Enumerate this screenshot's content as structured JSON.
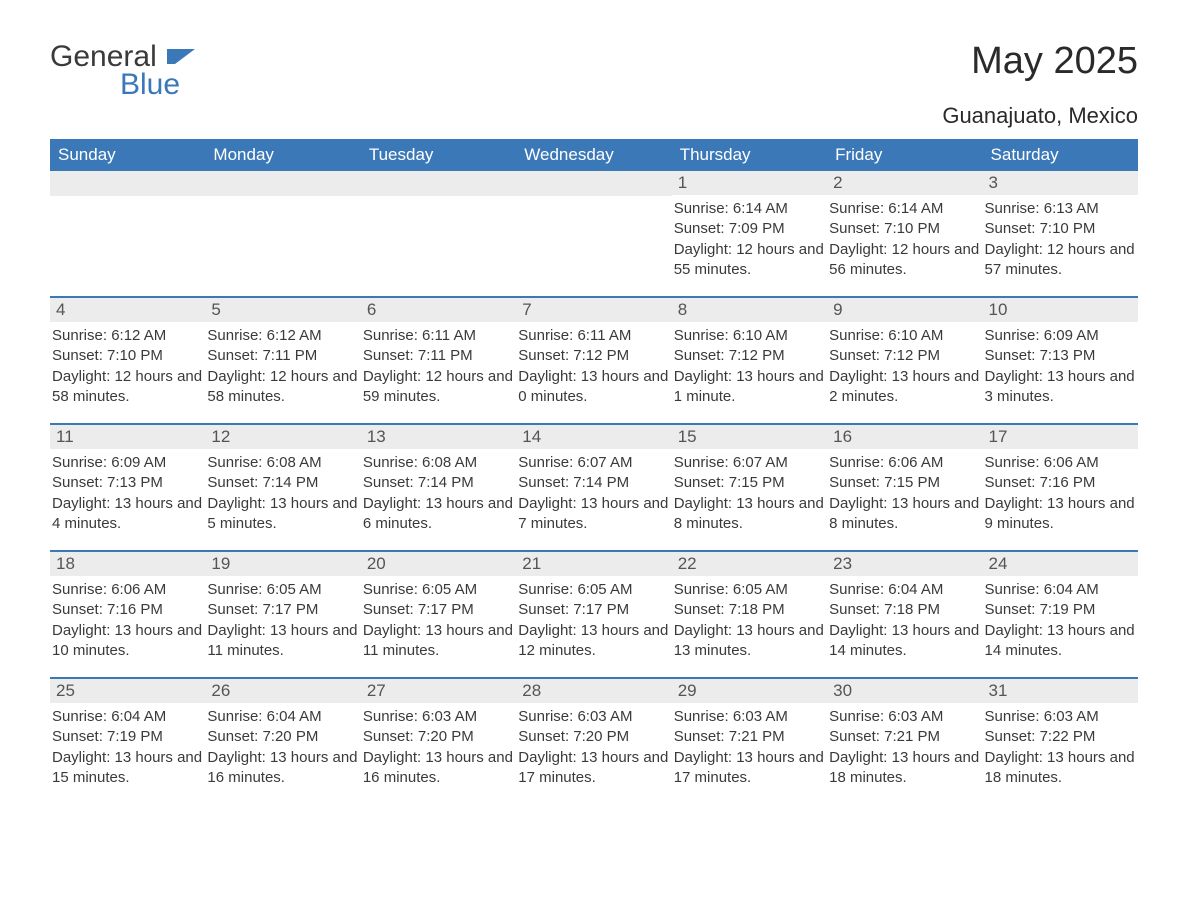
{
  "logo": {
    "text1": "General",
    "text2": "Blue"
  },
  "title": "May 2025",
  "location": "Guanajuato, Mexico",
  "colors": {
    "header_bg": "#3b78b8",
    "header_text": "#ffffff",
    "daynum_bg": "#ececec",
    "daynum_text": "#555555",
    "body_text": "#3a3a3a",
    "row_border": "#3b78b8",
    "logo_blue": "#3b78b8",
    "page_bg": "#ffffff"
  },
  "weekdays": [
    "Sunday",
    "Monday",
    "Tuesday",
    "Wednesday",
    "Thursday",
    "Friday",
    "Saturday"
  ],
  "weeks": [
    [
      {
        "day": "",
        "sunrise": "",
        "sunset": "",
        "daylight": ""
      },
      {
        "day": "",
        "sunrise": "",
        "sunset": "",
        "daylight": ""
      },
      {
        "day": "",
        "sunrise": "",
        "sunset": "",
        "daylight": ""
      },
      {
        "day": "",
        "sunrise": "",
        "sunset": "",
        "daylight": ""
      },
      {
        "day": "1",
        "sunrise": "Sunrise: 6:14 AM",
        "sunset": "Sunset: 7:09 PM",
        "daylight": "Daylight: 12 hours and 55 minutes."
      },
      {
        "day": "2",
        "sunrise": "Sunrise: 6:14 AM",
        "sunset": "Sunset: 7:10 PM",
        "daylight": "Daylight: 12 hours and 56 minutes."
      },
      {
        "day": "3",
        "sunrise": "Sunrise: 6:13 AM",
        "sunset": "Sunset: 7:10 PM",
        "daylight": "Daylight: 12 hours and 57 minutes."
      }
    ],
    [
      {
        "day": "4",
        "sunrise": "Sunrise: 6:12 AM",
        "sunset": "Sunset: 7:10 PM",
        "daylight": "Daylight: 12 hours and 58 minutes."
      },
      {
        "day": "5",
        "sunrise": "Sunrise: 6:12 AM",
        "sunset": "Sunset: 7:11 PM",
        "daylight": "Daylight: 12 hours and 58 minutes."
      },
      {
        "day": "6",
        "sunrise": "Sunrise: 6:11 AM",
        "sunset": "Sunset: 7:11 PM",
        "daylight": "Daylight: 12 hours and 59 minutes."
      },
      {
        "day": "7",
        "sunrise": "Sunrise: 6:11 AM",
        "sunset": "Sunset: 7:12 PM",
        "daylight": "Daylight: 13 hours and 0 minutes."
      },
      {
        "day": "8",
        "sunrise": "Sunrise: 6:10 AM",
        "sunset": "Sunset: 7:12 PM",
        "daylight": "Daylight: 13 hours and 1 minute."
      },
      {
        "day": "9",
        "sunrise": "Sunrise: 6:10 AM",
        "sunset": "Sunset: 7:12 PM",
        "daylight": "Daylight: 13 hours and 2 minutes."
      },
      {
        "day": "10",
        "sunrise": "Sunrise: 6:09 AM",
        "sunset": "Sunset: 7:13 PM",
        "daylight": "Daylight: 13 hours and 3 minutes."
      }
    ],
    [
      {
        "day": "11",
        "sunrise": "Sunrise: 6:09 AM",
        "sunset": "Sunset: 7:13 PM",
        "daylight": "Daylight: 13 hours and 4 minutes."
      },
      {
        "day": "12",
        "sunrise": "Sunrise: 6:08 AM",
        "sunset": "Sunset: 7:14 PM",
        "daylight": "Daylight: 13 hours and 5 minutes."
      },
      {
        "day": "13",
        "sunrise": "Sunrise: 6:08 AM",
        "sunset": "Sunset: 7:14 PM",
        "daylight": "Daylight: 13 hours and 6 minutes."
      },
      {
        "day": "14",
        "sunrise": "Sunrise: 6:07 AM",
        "sunset": "Sunset: 7:14 PM",
        "daylight": "Daylight: 13 hours and 7 minutes."
      },
      {
        "day": "15",
        "sunrise": "Sunrise: 6:07 AM",
        "sunset": "Sunset: 7:15 PM",
        "daylight": "Daylight: 13 hours and 8 minutes."
      },
      {
        "day": "16",
        "sunrise": "Sunrise: 6:06 AM",
        "sunset": "Sunset: 7:15 PM",
        "daylight": "Daylight: 13 hours and 8 minutes."
      },
      {
        "day": "17",
        "sunrise": "Sunrise: 6:06 AM",
        "sunset": "Sunset: 7:16 PM",
        "daylight": "Daylight: 13 hours and 9 minutes."
      }
    ],
    [
      {
        "day": "18",
        "sunrise": "Sunrise: 6:06 AM",
        "sunset": "Sunset: 7:16 PM",
        "daylight": "Daylight: 13 hours and 10 minutes."
      },
      {
        "day": "19",
        "sunrise": "Sunrise: 6:05 AM",
        "sunset": "Sunset: 7:17 PM",
        "daylight": "Daylight: 13 hours and 11 minutes."
      },
      {
        "day": "20",
        "sunrise": "Sunrise: 6:05 AM",
        "sunset": "Sunset: 7:17 PM",
        "daylight": "Daylight: 13 hours and 11 minutes."
      },
      {
        "day": "21",
        "sunrise": "Sunrise: 6:05 AM",
        "sunset": "Sunset: 7:17 PM",
        "daylight": "Daylight: 13 hours and 12 minutes."
      },
      {
        "day": "22",
        "sunrise": "Sunrise: 6:05 AM",
        "sunset": "Sunset: 7:18 PM",
        "daylight": "Daylight: 13 hours and 13 minutes."
      },
      {
        "day": "23",
        "sunrise": "Sunrise: 6:04 AM",
        "sunset": "Sunset: 7:18 PM",
        "daylight": "Daylight: 13 hours and 14 minutes."
      },
      {
        "day": "24",
        "sunrise": "Sunrise: 6:04 AM",
        "sunset": "Sunset: 7:19 PM",
        "daylight": "Daylight: 13 hours and 14 minutes."
      }
    ],
    [
      {
        "day": "25",
        "sunrise": "Sunrise: 6:04 AM",
        "sunset": "Sunset: 7:19 PM",
        "daylight": "Daylight: 13 hours and 15 minutes."
      },
      {
        "day": "26",
        "sunrise": "Sunrise: 6:04 AM",
        "sunset": "Sunset: 7:20 PM",
        "daylight": "Daylight: 13 hours and 16 minutes."
      },
      {
        "day": "27",
        "sunrise": "Sunrise: 6:03 AM",
        "sunset": "Sunset: 7:20 PM",
        "daylight": "Daylight: 13 hours and 16 minutes."
      },
      {
        "day": "28",
        "sunrise": "Sunrise: 6:03 AM",
        "sunset": "Sunset: 7:20 PM",
        "daylight": "Daylight: 13 hours and 17 minutes."
      },
      {
        "day": "29",
        "sunrise": "Sunrise: 6:03 AM",
        "sunset": "Sunset: 7:21 PM",
        "daylight": "Daylight: 13 hours and 17 minutes."
      },
      {
        "day": "30",
        "sunrise": "Sunrise: 6:03 AM",
        "sunset": "Sunset: 7:21 PM",
        "daylight": "Daylight: 13 hours and 18 minutes."
      },
      {
        "day": "31",
        "sunrise": "Sunrise: 6:03 AM",
        "sunset": "Sunset: 7:22 PM",
        "daylight": "Daylight: 13 hours and 18 minutes."
      }
    ]
  ]
}
